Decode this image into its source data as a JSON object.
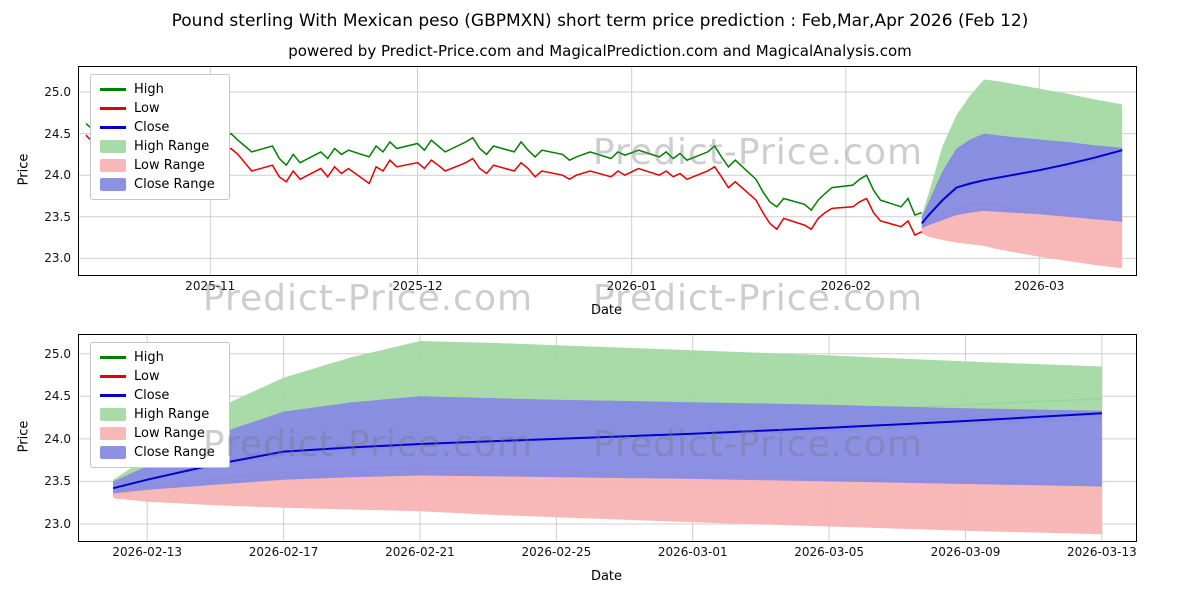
{
  "page": {
    "title": "Pound sterling With Mexican peso (GBPMXN) short term price prediction : Feb,Mar,Apr 2026 (Feb 12)",
    "subtitle": "powered by Predict-Price.com and MagicalPrediction.com and MagicalAnalysis.com",
    "watermark": "Predict-Price.com"
  },
  "chart_data": [
    {
      "type": "line",
      "name": "price-history-with-forecast",
      "xlabel": "Date",
      "ylabel": "Price",
      "xlim": [
        "2025-10-13",
        "2026-03-15"
      ],
      "ylim": [
        22.8,
        25.3
      ],
      "y_ticks": [
        23.0,
        23.5,
        24.0,
        24.5,
        25.0
      ],
      "x_ticks": [
        {
          "pos": "2025-11-01",
          "label": "2025-11"
        },
        {
          "pos": "2025-12-01",
          "label": "2025-12"
        },
        {
          "pos": "2026-01-01",
          "label": "2026-01"
        },
        {
          "pos": "2026-02-01",
          "label": "2026-02"
        },
        {
          "pos": "2026-03-01",
          "label": "2026-03"
        }
      ],
      "grid": true,
      "legend_position": "upper-left",
      "legend": [
        {
          "label": "High",
          "type": "line",
          "color": "#008000"
        },
        {
          "label": "Low",
          "type": "line",
          "color": "#e60000"
        },
        {
          "label": "Close",
          "type": "line",
          "color": "#0000cd"
        },
        {
          "label": "High Range",
          "type": "patch",
          "color": "#a3d9a3"
        },
        {
          "label": "Low Range",
          "type": "patch",
          "color": "#f9b4b4"
        },
        {
          "label": "Close Range",
          "type": "patch",
          "color": "#878be3"
        }
      ],
      "x_axes": {
        "history": [
          "2025-10-14",
          "2025-10-15",
          "2025-10-16",
          "2025-10-17",
          "2025-10-20",
          "2025-10-21",
          "2025-10-22",
          "2025-10-23",
          "2025-10-24",
          "2025-10-27",
          "2025-10-28",
          "2025-10-29",
          "2025-10-30",
          "2025-10-31",
          "2025-11-03",
          "2025-11-04",
          "2025-11-05",
          "2025-11-06",
          "2025-11-07",
          "2025-11-10",
          "2025-11-11",
          "2025-11-12",
          "2025-11-13",
          "2025-11-14",
          "2025-11-17",
          "2025-11-18",
          "2025-11-19",
          "2025-11-20",
          "2025-11-21",
          "2025-11-24",
          "2025-11-25",
          "2025-11-26",
          "2025-11-27",
          "2025-11-28",
          "2025-12-01",
          "2025-12-02",
          "2025-12-03",
          "2025-12-04",
          "2025-12-05",
          "2025-12-08",
          "2025-12-09",
          "2025-12-10",
          "2025-12-11",
          "2025-12-12",
          "2025-12-15",
          "2025-12-16",
          "2025-12-17",
          "2025-12-18",
          "2025-12-19",
          "2025-12-22",
          "2025-12-23",
          "2025-12-24",
          "2025-12-26",
          "2025-12-29",
          "2025-12-30",
          "2025-12-31",
          "2026-01-02",
          "2026-01-05",
          "2026-01-06",
          "2026-01-07",
          "2026-01-08",
          "2026-01-09",
          "2026-01-12",
          "2026-01-13",
          "2026-01-14",
          "2026-01-15",
          "2026-01-16",
          "2026-01-19",
          "2026-01-20",
          "2026-01-21",
          "2026-01-22",
          "2026-01-23",
          "2026-01-26",
          "2026-01-27",
          "2026-01-28",
          "2026-01-29",
          "2026-01-30",
          "2026-02-02",
          "2026-02-03",
          "2026-02-04",
          "2026-02-05",
          "2026-02-06",
          "2026-02-09",
          "2026-02-10",
          "2026-02-11",
          "2026-02-12"
        ],
        "forecast": [
          "2026-02-12",
          "2026-02-13",
          "2026-02-15",
          "2026-02-17",
          "2026-02-19",
          "2026-02-21",
          "2026-02-23",
          "2026-02-25",
          "2026-03-01",
          "2026-03-05",
          "2026-03-09",
          "2026-03-13"
        ]
      },
      "bands": [
        {
          "name": "high-range",
          "x": "forecast",
          "color": "#a3d9a3",
          "top": [
            23.52,
            23.78,
            24.35,
            24.72,
            24.96,
            25.15,
            25.13,
            25.1,
            25.04,
            24.98,
            24.91,
            24.85
          ],
          "bottom": [
            23.45,
            23.52,
            23.66,
            23.78,
            23.84,
            23.9,
            23.93,
            23.96,
            24.02,
            24.08,
            24.15,
            24.22
          ]
        },
        {
          "name": "low-range",
          "x": "forecast",
          "color": "#f9b4b4",
          "top": [
            23.4,
            23.46,
            23.56,
            23.64,
            23.67,
            23.69,
            23.67,
            23.65,
            23.61,
            23.57,
            23.52,
            23.48
          ],
          "bottom": [
            23.3,
            23.26,
            23.22,
            23.19,
            23.17,
            23.15,
            23.11,
            23.08,
            23.02,
            22.97,
            22.92,
            22.88
          ]
        },
        {
          "name": "close-range",
          "x": "forecast",
          "color": "#878be3",
          "top": [
            23.5,
            23.68,
            24.05,
            24.32,
            24.43,
            24.5,
            24.48,
            24.46,
            24.43,
            24.4,
            24.36,
            24.33
          ],
          "bottom": [
            23.36,
            23.4,
            23.46,
            23.52,
            23.55,
            23.57,
            23.56,
            23.55,
            23.53,
            23.5,
            23.47,
            23.44
          ]
        }
      ],
      "series": [
        {
          "name": "High",
          "color": "#008000",
          "x": "history",
          "width": 1.5,
          "y": [
            24.62,
            24.55,
            24.6,
            24.52,
            24.58,
            24.5,
            24.55,
            24.48,
            24.52,
            24.45,
            24.5,
            24.42,
            24.46,
            24.38,
            24.44,
            24.5,
            24.42,
            24.35,
            24.28,
            24.35,
            24.2,
            24.12,
            24.25,
            24.15,
            24.28,
            24.2,
            24.32,
            24.25,
            24.3,
            24.22,
            24.35,
            24.28,
            24.4,
            24.32,
            24.38,
            24.3,
            24.42,
            24.35,
            24.28,
            24.4,
            24.45,
            24.32,
            24.25,
            24.35,
            24.28,
            24.4,
            24.3,
            24.22,
            24.3,
            24.25,
            24.18,
            24.22,
            24.28,
            24.2,
            24.28,
            24.24,
            24.3,
            24.22,
            24.28,
            24.2,
            24.26,
            24.18,
            24.28,
            24.35,
            24.22,
            24.1,
            24.18,
            23.95,
            23.8,
            23.68,
            23.62,
            23.72,
            23.65,
            23.58,
            23.7,
            23.78,
            23.85,
            23.88,
            23.95,
            24.0,
            23.82,
            23.7,
            23.62,
            23.72,
            23.52,
            23.55
          ]
        },
        {
          "name": "Low",
          "color": "#e60000",
          "x": "history",
          "width": 1.5,
          "y": [
            24.48,
            24.4,
            24.45,
            24.38,
            24.42,
            24.35,
            24.4,
            24.32,
            24.36,
            24.3,
            24.35,
            24.26,
            24.3,
            24.22,
            24.28,
            24.32,
            24.25,
            24.15,
            24.05,
            24.12,
            23.98,
            23.92,
            24.05,
            23.95,
            24.08,
            23.98,
            24.1,
            24.02,
            24.08,
            23.9,
            24.1,
            24.05,
            24.18,
            24.1,
            24.15,
            24.08,
            24.18,
            24.12,
            24.05,
            24.15,
            24.2,
            24.08,
            24.02,
            24.12,
            24.05,
            24.15,
            24.08,
            23.98,
            24.05,
            24.0,
            23.95,
            24.0,
            24.05,
            23.98,
            24.05,
            24.0,
            24.08,
            24.0,
            24.05,
            23.98,
            24.02,
            23.95,
            24.05,
            24.1,
            23.98,
            23.85,
            23.92,
            23.7,
            23.55,
            23.42,
            23.35,
            23.48,
            23.4,
            23.35,
            23.48,
            23.55,
            23.6,
            23.62,
            23.68,
            23.72,
            23.55,
            23.45,
            23.38,
            23.45,
            23.28,
            23.32
          ]
        },
        {
          "name": "Close",
          "color": "#0000cd",
          "x": "forecast",
          "width": 2,
          "y": [
            23.42,
            23.52,
            23.7,
            23.85,
            23.9,
            23.94,
            23.97,
            24.0,
            24.06,
            24.13,
            24.21,
            24.3
          ]
        }
      ]
    },
    {
      "type": "line",
      "name": "forecast-detail",
      "xlabel": "Date",
      "ylabel": "Price",
      "xlim": [
        "2026-02-11",
        "2026-03-14"
      ],
      "ylim": [
        22.8,
        25.22
      ],
      "y_ticks": [
        23.0,
        23.5,
        24.0,
        24.5,
        25.0
      ],
      "x_ticks": [
        {
          "pos": "2026-02-13",
          "label": "2026-02-13"
        },
        {
          "pos": "2026-02-17",
          "label": "2026-02-17"
        },
        {
          "pos": "2026-02-21",
          "label": "2026-02-21"
        },
        {
          "pos": "2026-02-25",
          "label": "2026-02-25"
        },
        {
          "pos": "2026-03-01",
          "label": "2026-03-01"
        },
        {
          "pos": "2026-03-05",
          "label": "2026-03-05"
        },
        {
          "pos": "2026-03-09",
          "label": "2026-03-09"
        },
        {
          "pos": "2026-03-13",
          "label": "2026-03-13"
        }
      ],
      "grid": true,
      "legend_position": "upper-left",
      "legend": [
        {
          "label": "High",
          "type": "line",
          "color": "#008000"
        },
        {
          "label": "Low",
          "type": "line",
          "color": "#e60000"
        },
        {
          "label": "Close",
          "type": "line",
          "color": "#0000cd"
        },
        {
          "label": "High Range",
          "type": "patch",
          "color": "#a3d9a3"
        },
        {
          "label": "Low Range",
          "type": "patch",
          "color": "#f9b4b4"
        },
        {
          "label": "Close Range",
          "type": "patch",
          "color": "#878be3"
        }
      ],
      "x_axes": {
        "forecast": [
          "2026-02-12",
          "2026-02-13",
          "2026-02-15",
          "2026-02-17",
          "2026-02-19",
          "2026-02-21",
          "2026-02-23",
          "2026-02-25",
          "2026-03-01",
          "2026-03-05",
          "2026-03-09",
          "2026-03-13"
        ]
      },
      "bands": [
        {
          "name": "high-range",
          "x": "forecast",
          "color": "#a3d9a3",
          "top": [
            23.52,
            23.78,
            24.35,
            24.72,
            24.96,
            25.15,
            25.13,
            25.1,
            25.04,
            24.98,
            24.91,
            24.85
          ],
          "bottom": [
            23.45,
            23.52,
            23.66,
            23.78,
            23.84,
            23.9,
            23.93,
            23.96,
            24.02,
            24.08,
            24.15,
            24.22
          ]
        },
        {
          "name": "low-range",
          "x": "forecast",
          "color": "#f9b4b4",
          "top": [
            23.4,
            23.46,
            23.56,
            23.64,
            23.67,
            23.69,
            23.67,
            23.65,
            23.61,
            23.57,
            23.52,
            23.48
          ],
          "bottom": [
            23.3,
            23.26,
            23.22,
            23.19,
            23.17,
            23.15,
            23.11,
            23.08,
            23.02,
            22.97,
            22.92,
            22.88
          ]
        },
        {
          "name": "close-range",
          "x": "forecast",
          "color": "#878be3",
          "top": [
            23.5,
            23.68,
            24.05,
            24.32,
            24.43,
            24.5,
            24.48,
            24.46,
            24.43,
            24.4,
            24.36,
            24.33
          ],
          "bottom": [
            23.36,
            23.4,
            23.46,
            23.52,
            23.55,
            23.57,
            23.56,
            23.55,
            23.53,
            23.5,
            23.47,
            23.44
          ]
        }
      ],
      "series": [
        {
          "name": "High",
          "color": "#008000",
          "x": "forecast",
          "width": 1.5,
          "behind": true,
          "y": [
            23.48,
            23.6,
            23.82,
            23.97,
            24.04,
            24.1,
            24.14,
            24.18,
            24.25,
            24.32,
            24.4,
            24.47
          ]
        },
        {
          "name": "Low",
          "color": "#e60000",
          "x": "forecast",
          "width": 1.5,
          "behind": true,
          "y": [
            23.35,
            23.42,
            23.52,
            23.6,
            23.63,
            23.65,
            23.64,
            23.62,
            23.58,
            23.54,
            23.5,
            23.46
          ]
        },
        {
          "name": "Close",
          "color": "#0000cd",
          "x": "forecast",
          "width": 2,
          "y": [
            23.42,
            23.52,
            23.7,
            23.85,
            23.9,
            23.94,
            23.97,
            24.0,
            24.06,
            24.13,
            24.21,
            24.3
          ]
        }
      ]
    }
  ]
}
